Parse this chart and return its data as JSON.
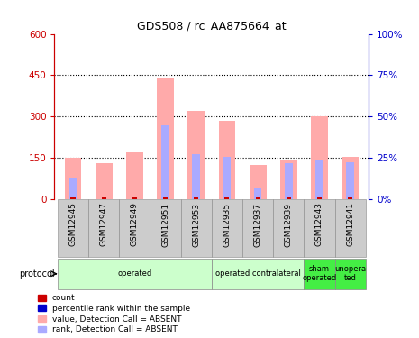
{
  "title": "GDS508 / rc_AA875664_at",
  "samples": [
    "GSM12945",
    "GSM12947",
    "GSM12949",
    "GSM12951",
    "GSM12953",
    "GSM12935",
    "GSM12937",
    "GSM12939",
    "GSM12943",
    "GSM12941"
  ],
  "pink_values": [
    150,
    130,
    170,
    440,
    320,
    285,
    125,
    140,
    300,
    155
  ],
  "blue_rank": [
    75,
    0,
    0,
    270,
    165,
    155,
    40,
    130,
    145,
    135
  ],
  "left_ylim": [
    0,
    600
  ],
  "right_ylim": [
    0,
    100
  ],
  "left_yticks": [
    0,
    150,
    300,
    450,
    600
  ],
  "right_yticks": [
    0,
    25,
    50,
    75,
    100
  ],
  "left_yticklabels": [
    "0",
    "150",
    "300",
    "450",
    "600"
  ],
  "right_yticklabels": [
    "0%",
    "25%",
    "50%",
    "75%",
    "100%"
  ],
  "protocol_groups": [
    {
      "label": "operated",
      "start": 0,
      "end": 5,
      "color": "#ccffcc",
      "border": "#aaaaaa"
    },
    {
      "label": "operated contralateral",
      "start": 5,
      "end": 8,
      "color": "#ccffcc",
      "border": "#aaaaaa"
    },
    {
      "label": "sham\noperated",
      "start": 8,
      "end": 9,
      "color": "#44ee44",
      "border": "#aaaaaa"
    },
    {
      "label": "unopera\nted",
      "start": 9,
      "end": 10,
      "color": "#44ee44",
      "border": "#aaaaaa"
    }
  ],
  "pink_color": "#ffaaaa",
  "blue_color": "#aaaaff",
  "red_color": "#cc0000",
  "dark_blue_color": "#0000cc",
  "bar_width": 0.55,
  "blue_bar_width": 0.25,
  "bg_color": "#ffffff",
  "plot_bg": "#ffffff",
  "left_axis_color": "#cc0000",
  "right_axis_color": "#0000cc",
  "tick_label_bg": "#cccccc"
}
